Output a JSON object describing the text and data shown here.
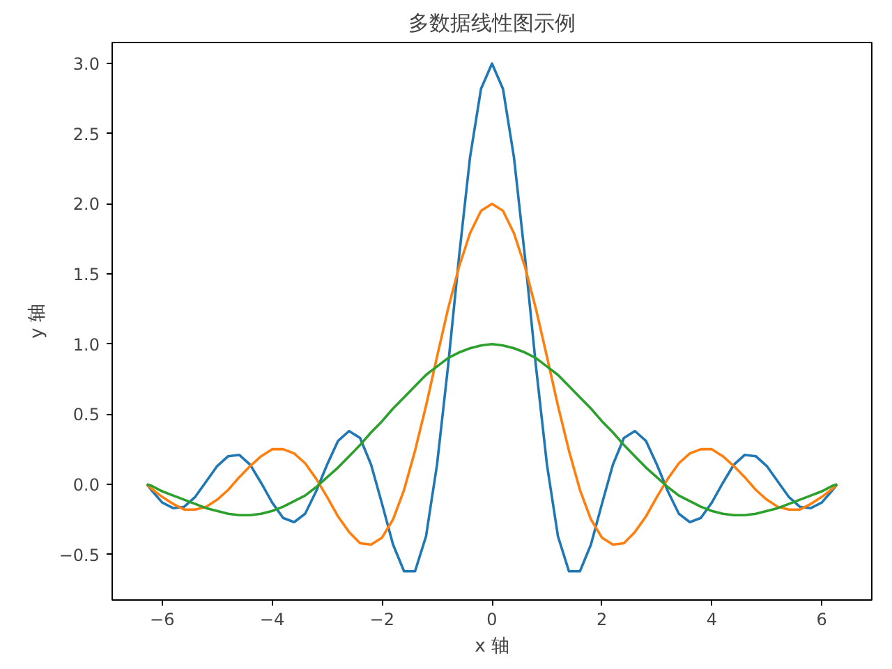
{
  "chart_data": {
    "type": "line",
    "title": "多数据线性图示例",
    "xlabel": "x 轴",
    "ylabel": "y 轴",
    "x": [
      -6.28,
      -6.2,
      -6.0,
      -5.8,
      -5.6,
      -5.4,
      -5.2,
      -5.0,
      -4.8,
      -4.6,
      -4.4,
      -4.2,
      -4.0,
      -3.8,
      -3.6,
      -3.4,
      -3.2,
      -3.0,
      -2.8,
      -2.6,
      -2.4,
      -2.2,
      -2.0,
      -1.8,
      -1.6,
      -1.4,
      -1.2,
      -1.0,
      -0.8,
      -0.6,
      -0.4,
      -0.2,
      0,
      0.2,
      0.4,
      0.6,
      0.8,
      1.0,
      1.2,
      1.4,
      1.6,
      1.8,
      2.0,
      2.2,
      2.4,
      2.6,
      2.8,
      3.0,
      3.2,
      3.4,
      3.6,
      3.8,
      4.0,
      4.2,
      4.4,
      4.6,
      4.8,
      5.0,
      5.2,
      5.4,
      5.6,
      5.8,
      6.0,
      6.2,
      6.28
    ],
    "series": [
      {
        "color": "#1f77b4",
        "values": [
          0,
          -0.04,
          -0.13,
          -0.17,
          -0.16,
          -0.09,
          0.02,
          0.13,
          0.2,
          0.21,
          0.14,
          0.01,
          -0.13,
          -0.24,
          -0.27,
          -0.21,
          -0.05,
          0.14,
          0.31,
          0.38,
          0.33,
          0.14,
          -0.14,
          -0.43,
          -0.62,
          -0.62,
          -0.37,
          0.14,
          0.84,
          1.62,
          2.33,
          2.82,
          3,
          2.82,
          2.33,
          1.62,
          0.84,
          0.14,
          -0.37,
          -0.62,
          -0.62,
          -0.43,
          -0.14,
          0.14,
          0.33,
          0.38,
          0.31,
          0.14,
          -0.05,
          -0.21,
          -0.27,
          -0.24,
          -0.13,
          0.01,
          0.14,
          0.21,
          0.2,
          0.13,
          0.02,
          -0.09,
          -0.16,
          -0.17,
          -0.13,
          -0.04,
          0
        ]
      },
      {
        "color": "#ff7f0e",
        "values": [
          0,
          -0.03,
          -0.09,
          -0.14,
          -0.18,
          -0.18,
          -0.16,
          -0.11,
          -0.04,
          0.05,
          0.13,
          0.2,
          0.25,
          0.25,
          0.22,
          0.15,
          0.04,
          -0.09,
          -0.23,
          -0.34,
          -0.42,
          -0.43,
          -0.38,
          -0.25,
          -0.04,
          0.24,
          0.56,
          0.91,
          1.25,
          1.55,
          1.79,
          1.95,
          2,
          1.95,
          1.79,
          1.55,
          1.25,
          0.91,
          0.56,
          0.24,
          -0.04,
          -0.25,
          -0.38,
          -0.43,
          -0.42,
          -0.34,
          -0.23,
          -0.09,
          0.04,
          0.15,
          0.22,
          0.25,
          0.25,
          0.2,
          0.13,
          0.05,
          -0.04,
          -0.11,
          -0.16,
          -0.18,
          -0.18,
          -0.14,
          -0.09,
          -0.03,
          0
        ]
      },
      {
        "color": "#2ca02c",
        "values": [
          0,
          -0.01,
          -0.05,
          -0.08,
          -0.11,
          -0.14,
          -0.17,
          -0.19,
          -0.21,
          -0.22,
          -0.22,
          -0.21,
          -0.19,
          -0.16,
          -0.12,
          -0.08,
          -0.02,
          0.05,
          0.12,
          0.2,
          0.28,
          0.37,
          0.45,
          0.54,
          0.62,
          0.7,
          0.78,
          0.84,
          0.9,
          0.94,
          0.97,
          0.99,
          1,
          0.99,
          0.97,
          0.94,
          0.9,
          0.84,
          0.78,
          0.7,
          0.62,
          0.54,
          0.45,
          0.37,
          0.28,
          0.2,
          0.12,
          0.05,
          -0.02,
          -0.08,
          -0.12,
          -0.16,
          -0.19,
          -0.21,
          -0.22,
          -0.22,
          -0.21,
          -0.19,
          -0.17,
          -0.14,
          -0.11,
          -0.08,
          -0.05,
          -0.01,
          0
        ]
      }
    ],
    "xlim": [
      -6.91,
      6.91
    ],
    "ylim": [
      -0.825,
      3.15
    ],
    "xticks": [
      {
        "value": -6,
        "label": "−6"
      },
      {
        "value": -4,
        "label": "−4"
      },
      {
        "value": -2,
        "label": "−2"
      },
      0,
      2,
      4,
      6
    ],
    "yticks": [
      {
        "value": -0.5,
        "label": "−0.5"
      },
      {
        "value": 0,
        "label": "0.0"
      },
      0.5,
      {
        "value": 1,
        "label": "1.0"
      },
      1.5,
      {
        "value": 2,
        "label": "2.0"
      },
      2.5,
      {
        "value": 3,
        "label": "3.0"
      }
    ],
    "line_style": "solid"
  }
}
